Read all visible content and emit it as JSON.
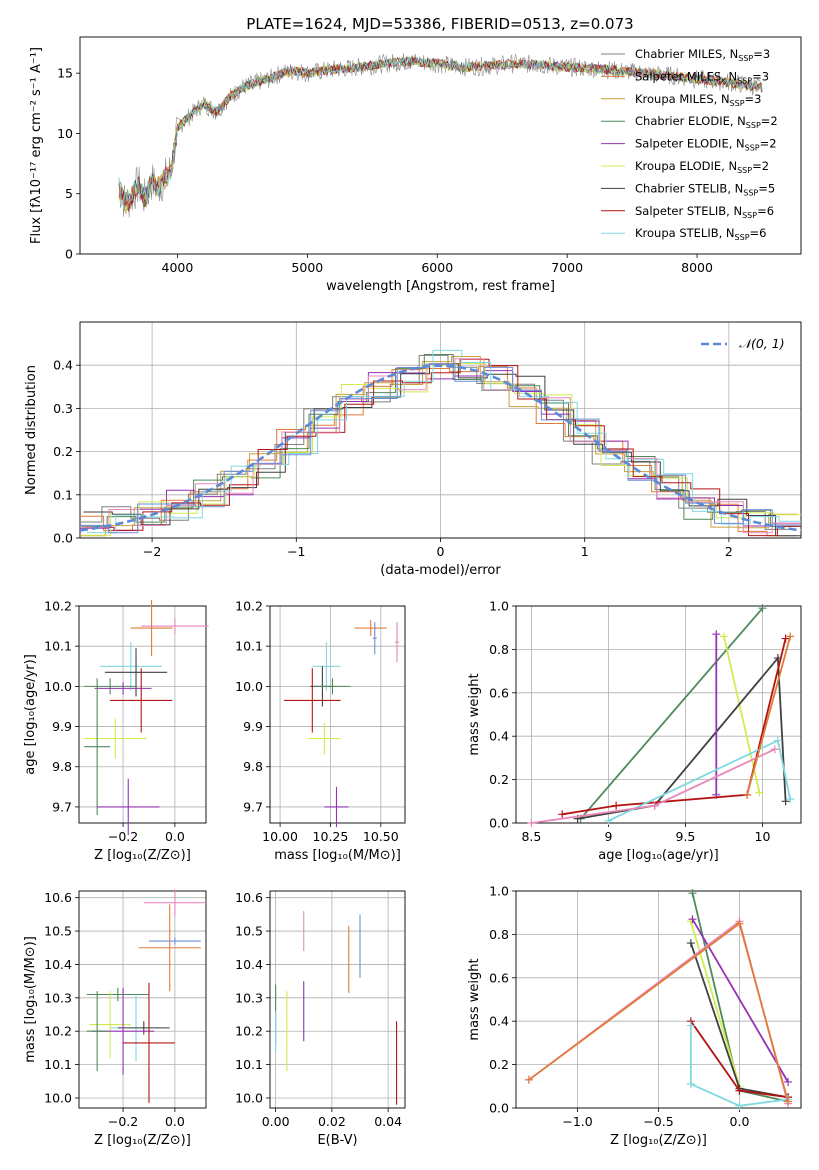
{
  "figure": {
    "title": "PLATE=1624, MJD=53386, FIBERID=0513, z=0.073"
  },
  "series": [
    {
      "name": "Chabrier MILES",
      "nssp": "3",
      "color": "#808080"
    },
    {
      "name": "Salpeter MILES",
      "nssp": "3",
      "color": "#e07b3a"
    },
    {
      "name": "Kroupa MILES",
      "nssp": "3",
      "color": "#c8a03c"
    },
    {
      "name": "Chabrier ELODIE",
      "nssp": "2",
      "color": "#4f8a5a"
    },
    {
      "name": "Salpeter ELODIE",
      "nssp": "2",
      "color": "#9632b4"
    },
    {
      "name": "Kroupa ELODIE",
      "nssp": "2",
      "color": "#d2ec50"
    },
    {
      "name": "Chabrier STELIB",
      "nssp": "5",
      "color": "#404040"
    },
    {
      "name": "Salpeter STELIB",
      "nssp": "6",
      "color": "#b41414"
    },
    {
      "name": "Kroupa STELIB",
      "nssp": "6",
      "color": "#80d8e0"
    }
  ],
  "extra_colors": {
    "pink": "#e888b8",
    "blue": "#6e8ed8",
    "normal": "#5a8ad8"
  },
  "chart_data": [
    {
      "id": "spectrum",
      "type": "line",
      "xlabel": "wavelength [Angstrom, rest frame]",
      "ylabel": "Flux [fλ10⁻¹⁷ erg cm⁻² s⁻¹ A⁻¹]",
      "xlim": [
        3250,
        8800
      ],
      "ylim": [
        0,
        18
      ],
      "xticks": [
        4000,
        5000,
        6000,
        7000,
        8000
      ],
      "yticks": [
        0,
        5,
        10,
        15
      ],
      "x": [
        3550,
        3600,
        3650,
        3700,
        3750,
        3800,
        3850,
        3900,
        3950,
        4000,
        4100,
        4200,
        4300,
        4400,
        4500,
        4600,
        4700,
        4800,
        4900,
        5000,
        5200,
        5400,
        5600,
        5800,
        6000,
        6200,
        6400,
        6600,
        6800,
        7000,
        7200,
        7400,
        7600,
        7800,
        8000,
        8200,
        8400,
        8500
      ],
      "y": [
        5.5,
        4.2,
        4.8,
        5.8,
        4.5,
        6.0,
        5.5,
        6.2,
        7.0,
        10.5,
        11.5,
        12.5,
        11.8,
        13.0,
        13.8,
        14.2,
        14.5,
        15.0,
        15.2,
        15.0,
        15.3,
        15.5,
        15.8,
        16.0,
        15.8,
        15.5,
        15.6,
        15.8,
        15.7,
        15.5,
        15.4,
        15.2,
        15.0,
        14.8,
        14.5,
        14.3,
        14.0,
        13.8
      ],
      "legend": "upper-right"
    },
    {
      "id": "residuals",
      "type": "bar",
      "xlabel": "(data-model)/error",
      "ylabel": "Normed distribution",
      "xlim": [
        -2.5,
        2.5
      ],
      "ylim": [
        0,
        0.5
      ],
      "xticks": [
        -2,
        -1,
        0,
        1,
        2
      ],
      "yticks": [
        0.0,
        0.1,
        0.2,
        0.3,
        0.4
      ],
      "reference": {
        "name": "𝒩(0, 1)",
        "mean": 0.0,
        "sigma": 1.0
      },
      "bin_centers": [
        -2.4,
        -2.2,
        -2.0,
        -1.8,
        -1.6,
        -1.4,
        -1.2,
        -1.0,
        -0.8,
        -0.6,
        -0.4,
        -0.2,
        0.0,
        0.2,
        0.4,
        0.6,
        0.8,
        1.0,
        1.2,
        1.4,
        1.6,
        1.8,
        2.0,
        2.2,
        2.4
      ],
      "values": [
        0.025,
        0.04,
        0.055,
        0.075,
        0.1,
        0.13,
        0.17,
        0.22,
        0.27,
        0.32,
        0.35,
        0.37,
        0.4,
        0.39,
        0.37,
        0.34,
        0.3,
        0.25,
        0.2,
        0.16,
        0.12,
        0.08,
        0.06,
        0.04,
        0.03
      ]
    },
    {
      "id": "age-vs-z",
      "type": "scatter",
      "xlabel": "Z [log₁₀(Z/Z⊙)]",
      "ylabel": "age  [log₁₀(age/yr)]",
      "xlim": [
        -0.37,
        0.12
      ],
      "ylim": [
        9.66,
        10.2
      ],
      "xticks": [
        -0.2,
        0.0
      ],
      "xticklabels": [
        "−0.2",
        "0.0"
      ],
      "yticks": [
        9.7,
        9.8,
        9.9,
        10.0,
        10.1,
        10.2
      ],
      "points": [
        {
          "c": "pink",
          "x": 0.0,
          "y": 10.15,
          "xe": 0.13,
          "ye": 0.02
        },
        {
          "c": "#e07b3a",
          "x": -0.09,
          "y": 10.145,
          "xe": 0.08,
          "ye": 0.07
        },
        {
          "c": "#80d8e0",
          "x": -0.17,
          "y": 10.05,
          "xe": 0.12,
          "ye": 0.06
        },
        {
          "c": "#404040",
          "x": -0.15,
          "y": 10.035,
          "xe": 0.12,
          "ye": 0.06
        },
        {
          "c": "#4f8a5a",
          "x": -0.25,
          "y": 10.0,
          "xe": 0.1,
          "ye": 0.02
        },
        {
          "c": "#9632b4",
          "x": -0.2,
          "y": 9.995,
          "xe": 0.11,
          "ye": 0.015
        },
        {
          "c": "#b41414",
          "x": -0.13,
          "y": 9.965,
          "xe": 0.12,
          "ye": 0.08
        },
        {
          "c": "#d2ec50",
          "x": -0.23,
          "y": 9.87,
          "xe": 0.12,
          "ye": 0.05
        },
        {
          "c": "#4f8a5a",
          "x": -0.3,
          "y": 9.85,
          "xe": 0.05,
          "ye": 0.17
        },
        {
          "c": "#9632b4",
          "x": -0.18,
          "y": 9.7,
          "xe": 0.12,
          "ye": 0.07
        }
      ]
    },
    {
      "id": "age-vs-mass",
      "type": "scatter",
      "xlabel": "mass [log₁₀(M/M⊙)]",
      "ylabel": "",
      "xlim": [
        9.95,
        10.62
      ],
      "ylim": [
        9.66,
        10.2
      ],
      "xticks": [
        10.0,
        10.25,
        10.5
      ],
      "xticklabels": [
        "10.00",
        "10.25",
        "10.50"
      ],
      "yticks": [
        9.7,
        9.8,
        9.9,
        10.0,
        10.1,
        10.2
      ],
      "points": [
        {
          "c": "pink",
          "x": 10.58,
          "y": 10.11,
          "xe": 0.01,
          "ye": 0.05
        },
        {
          "c": "#e07b3a",
          "x": 10.45,
          "y": 10.145,
          "xe": 0.08,
          "ye": 0.02
        },
        {
          "c": "#6e8ed8",
          "x": 10.47,
          "y": 10.12,
          "xe": 0.01,
          "ye": 0.04
        },
        {
          "c": "#80d8e0",
          "x": 10.23,
          "y": 10.05,
          "xe": 0.07,
          "ye": 0.06
        },
        {
          "c": "#404040",
          "x": 10.21,
          "y": 10.0,
          "xe": 0.06,
          "ye": 0.05
        },
        {
          "c": "#4f8a5a",
          "x": 10.26,
          "y": 10.0,
          "xe": 0.09,
          "ye": 0.02
        },
        {
          "c": "#b41414",
          "x": 10.16,
          "y": 9.965,
          "xe": 0.14,
          "ye": 0.08
        },
        {
          "c": "#d2ec50",
          "x": 10.22,
          "y": 9.87,
          "xe": 0.08,
          "ye": 0.04
        },
        {
          "c": "#9632b4",
          "x": 10.28,
          "y": 9.7,
          "xe": 0.06,
          "ye": 0.05
        }
      ]
    },
    {
      "id": "massweight-vs-age",
      "type": "line",
      "xlabel": "age  [log₁₀(age/yr)]",
      "ylabel": "mass weight",
      "xlim": [
        8.4,
        10.25
      ],
      "ylim": [
        0,
        1
      ],
      "xticks": [
        8.5,
        9.0,
        9.5,
        10.0
      ],
      "yticks": [
        0.0,
        0.2,
        0.4,
        0.6,
        0.8,
        1.0
      ],
      "series": [
        {
          "c": "#4f8a5a",
          "x": [
            8.82,
            10.0
          ],
          "y": [
            0.02,
            0.99
          ]
        },
        {
          "c": "#d2ec50",
          "x": [
            9.75,
            9.98
          ],
          "y": [
            0.86,
            0.14
          ]
        },
        {
          "c": "#404040",
          "x": [
            8.8,
            9.3,
            10.1,
            10.15
          ],
          "y": [
            0.02,
            0.08,
            0.76,
            0.1
          ]
        },
        {
          "c": "#9632b4",
          "x": [
            9.7,
            9.7
          ],
          "y": [
            0.13,
            0.87
          ]
        },
        {
          "c": "#b41414",
          "x": [
            8.7,
            9.05,
            9.9,
            10.15
          ],
          "y": [
            0.04,
            0.08,
            0.13,
            0.85
          ]
        },
        {
          "c": "#80d8e0",
          "x": [
            9.0,
            10.1,
            10.18
          ],
          "y": [
            0.01,
            0.38,
            0.11
          ]
        },
        {
          "c": "pink",
          "x": [
            8.5,
            9.3,
            10.08
          ],
          "y": [
            0.0,
            0.08,
            0.34
          ]
        },
        {
          "c": "#e07b3a",
          "x": [
            9.9,
            10.18
          ],
          "y": [
            0.13,
            0.86
          ]
        }
      ]
    },
    {
      "id": "mass-vs-z",
      "type": "scatter",
      "xlabel": "Z [log₁₀(Z/Z⊙)]",
      "ylabel": "mass [log₁₀(M/M⊙)]",
      "xlim": [
        -0.37,
        0.12
      ],
      "ylim": [
        9.97,
        10.62
      ],
      "xticks": [
        -0.2,
        0.0
      ],
      "xticklabels": [
        "−0.2",
        "0.0"
      ],
      "yticks": [
        10.0,
        10.1,
        10.2,
        10.3,
        10.4,
        10.5,
        10.6
      ],
      "points": [
        {
          "c": "pink",
          "x": 0.0,
          "y": 10.585,
          "xe": 0.12,
          "ye": 0.04
        },
        {
          "c": "#6e8ed8",
          "x": 0.0,
          "y": 10.47,
          "xe": 0.1,
          "ye": 0.01
        },
        {
          "c": "#e07b3a",
          "x": -0.02,
          "y": 10.45,
          "xe": 0.12,
          "ye": 0.13
        },
        {
          "c": "#4f8a5a",
          "x": -0.22,
          "y": 10.31,
          "xe": 0.12,
          "ye": 0.02
        },
        {
          "c": "#d2ec50",
          "x": -0.25,
          "y": 10.22,
          "xe": 0.08,
          "ye": 0.1
        },
        {
          "c": "#80d8e0",
          "x": -0.15,
          "y": 10.21,
          "xe": 0.1,
          "ye": 0.1
        },
        {
          "c": "#404040",
          "x": -0.12,
          "y": 10.21,
          "xe": 0.1,
          "ye": 0.02
        },
        {
          "c": "#9632b4",
          "x": -0.2,
          "y": 10.2,
          "xe": 0.12,
          "ye": 0.13
        },
        {
          "c": "#b41414",
          "x": -0.1,
          "y": 10.165,
          "xe": 0.1,
          "ye": 0.18
        },
        {
          "c": "#4f8a5a",
          "x": -0.3,
          "y": 10.2,
          "xe": 0.04,
          "ye": 0.12
        }
      ]
    },
    {
      "id": "mass-vs-ebv",
      "type": "scatter",
      "xlabel": "E(B-V)",
      "ylabel": "",
      "xlim": [
        -0.002,
        0.046
      ],
      "ylim": [
        9.97,
        10.62
      ],
      "xticks": [
        0.0,
        0.02,
        0.04
      ],
      "xticklabels": [
        "0.00",
        "0.02",
        "0.04"
      ],
      "yticks": [
        10.0,
        10.1,
        10.2,
        10.3,
        10.4,
        10.5,
        10.6
      ],
      "points": [
        {
          "c": "pink",
          "x": 0.01,
          "y": 10.5,
          "xe": 0,
          "ye": 0.06
        },
        {
          "c": "#6e8ed8",
          "x": 0.03,
          "y": 10.455,
          "xe": 0,
          "ye": 0.095
        },
        {
          "c": "#e07b3a",
          "x": 0.026,
          "y": 10.415,
          "xe": 0,
          "ye": 0.1
        },
        {
          "c": "#4f8a5a",
          "x": 0.0,
          "y": 10.25,
          "xe": 0,
          "ye": 0.09
        },
        {
          "c": "#d2ec50",
          "x": 0.004,
          "y": 10.2,
          "xe": 0,
          "ye": 0.12
        },
        {
          "c": "#9632b4",
          "x": 0.01,
          "y": 10.26,
          "xe": 0,
          "ye": 0.09
        },
        {
          "c": "#80d8e0",
          "x": 0.0,
          "y": 10.2,
          "xe": 0,
          "ye": 0.06
        },
        {
          "c": "#b41414",
          "x": 0.043,
          "y": 10.105,
          "xe": 0,
          "ye": 0.125
        }
      ]
    },
    {
      "id": "massweight-vs-z",
      "type": "line",
      "xlabel": "Z [log₁₀(Z/Z⊙)]",
      "ylabel": "mass weight",
      "xlim": [
        -1.38,
        0.38
      ],
      "ylim": [
        0,
        1
      ],
      "xticks": [
        -1.0,
        -0.5,
        0.0
      ],
      "xticklabels": [
        "−1.0",
        "−0.5",
        "0.0"
      ],
      "yticks": [
        0.0,
        0.2,
        0.4,
        0.6,
        0.8,
        1.0
      ],
      "series": [
        {
          "c": "#4f8a5a",
          "x": [
            -0.29,
            0.0,
            0.3
          ],
          "y": [
            0.99,
            0.08,
            0.03
          ]
        },
        {
          "c": "#d2ec50",
          "x": [
            -0.3,
            0.0
          ],
          "y": [
            0.86,
            0.1
          ]
        },
        {
          "c": "#9632b4",
          "x": [
            -0.29,
            0.3
          ],
          "y": [
            0.87,
            0.12
          ]
        },
        {
          "c": "#404040",
          "x": [
            -0.3,
            0.0,
            0.3
          ],
          "y": [
            0.76,
            0.09,
            0.05
          ]
        },
        {
          "c": "#b41414",
          "x": [
            -0.3,
            0.0,
            0.3
          ],
          "y": [
            0.4,
            0.08,
            0.05
          ]
        },
        {
          "c": "#80d8e0",
          "x": [
            -0.3,
            -0.3,
            0.0,
            0.3
          ],
          "y": [
            0.38,
            0.11,
            0.01,
            0.04
          ]
        },
        {
          "c": "pink",
          "x": [
            -1.3,
            0.0,
            0.3
          ],
          "y": [
            0.13,
            0.86,
            0.02
          ]
        },
        {
          "c": "#e07b3a",
          "x": [
            -1.3,
            0.0,
            0.3
          ],
          "y": [
            0.13,
            0.85,
            0.03
          ]
        }
      ]
    }
  ]
}
